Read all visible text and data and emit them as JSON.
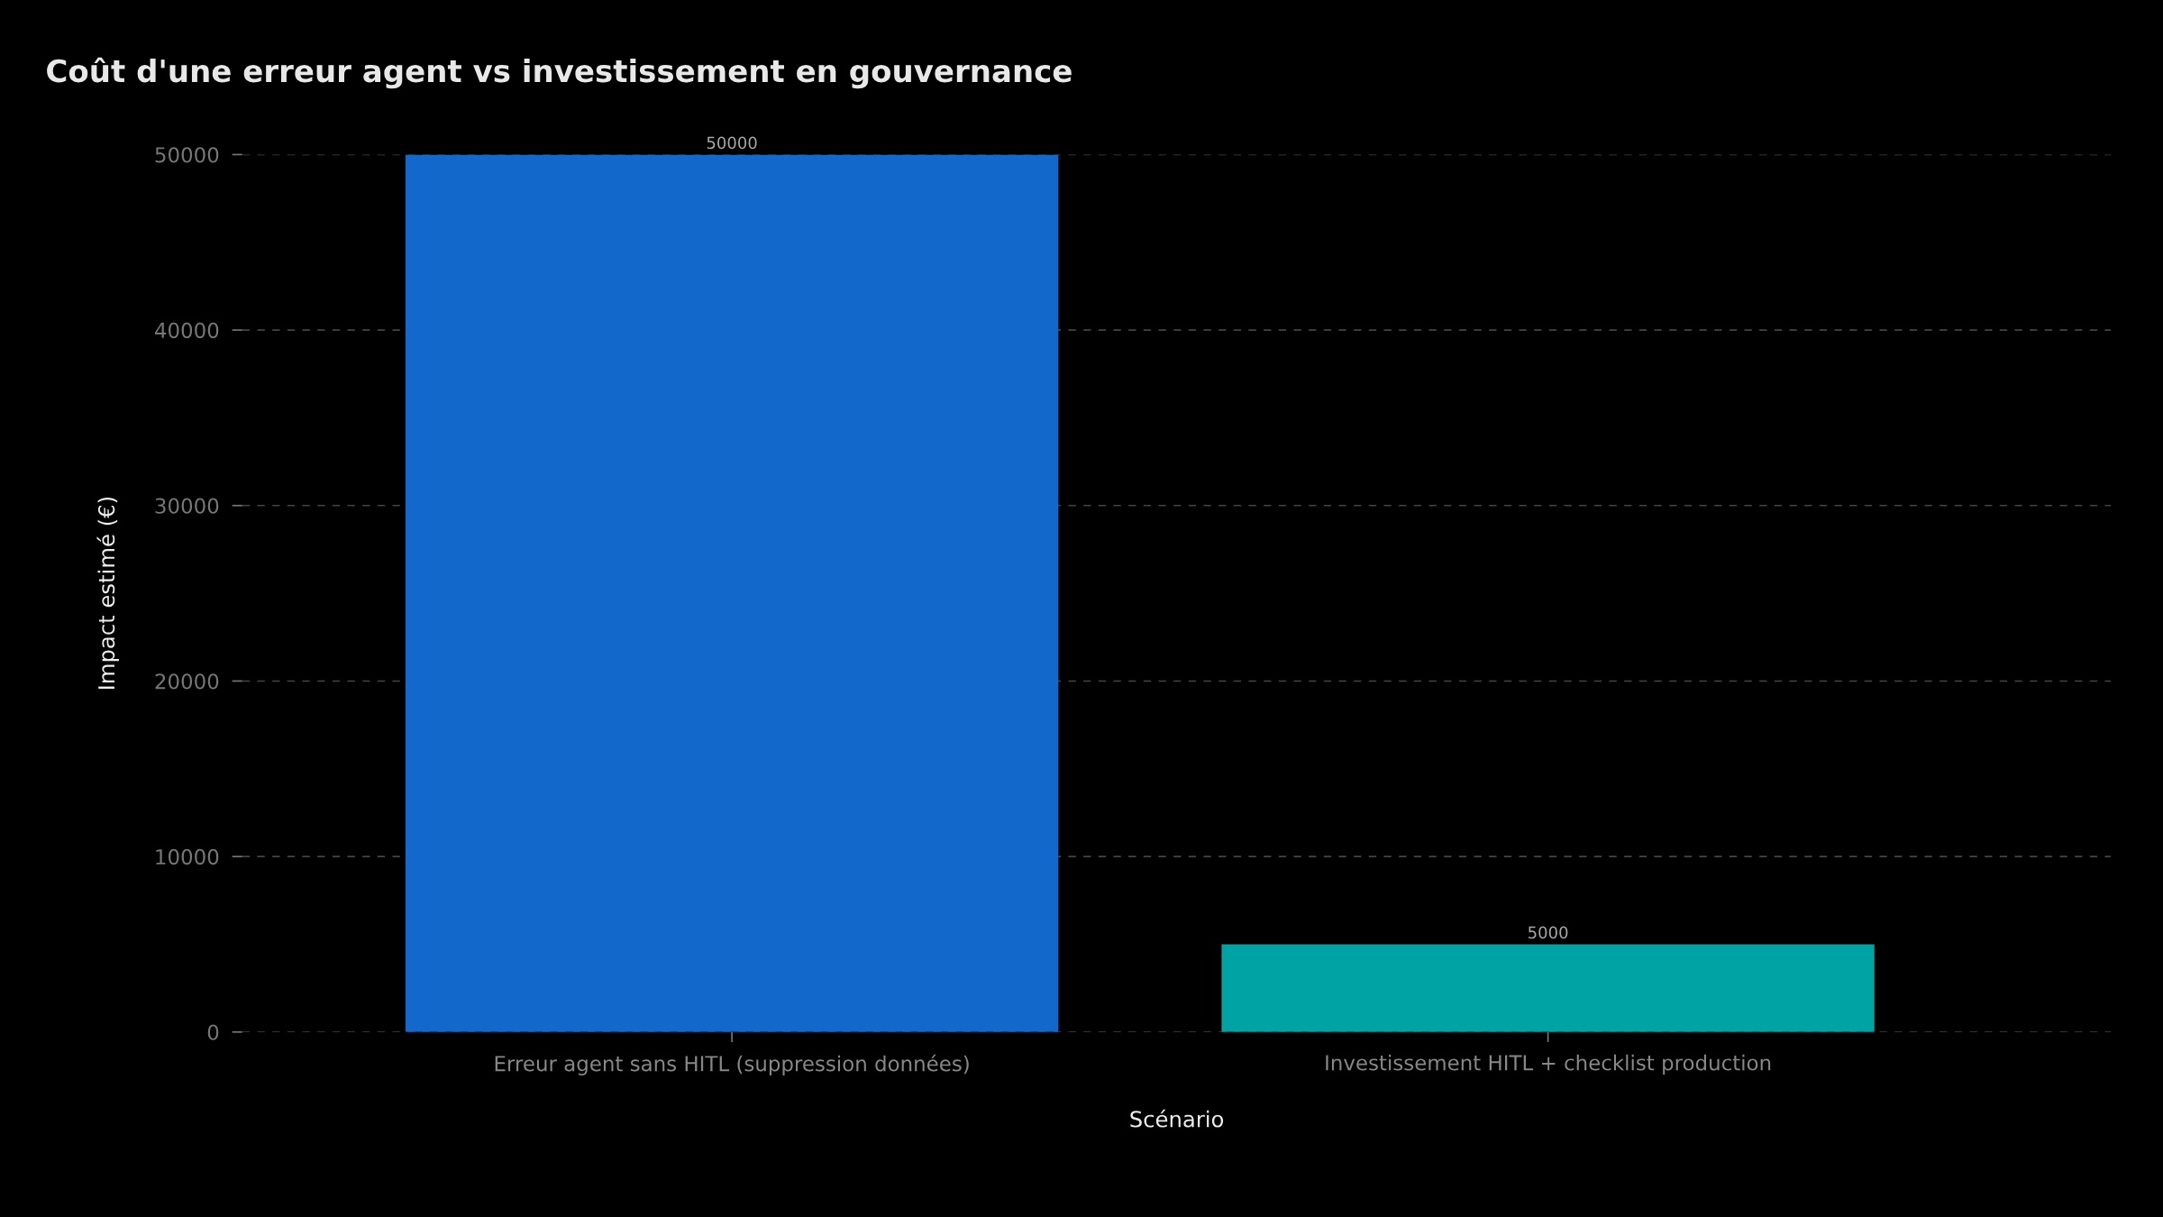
{
  "chart_data": {
    "type": "bar",
    "title": "Coût d'une erreur agent vs investissement en gouvernance",
    "xlabel": "Scénario",
    "ylabel": "Impact estimé (€)",
    "categories": [
      "Erreur agent sans HITL (suppression données)",
      "Investissement HITL + checklist production"
    ],
    "values": [
      50000,
      5000
    ],
    "colors": [
      "#1368cc",
      "#00a3a3"
    ],
    "ylim": [
      0,
      50000
    ],
    "yticks": [
      0,
      10000,
      20000,
      30000,
      40000,
      50000
    ],
    "grid": "y",
    "data_labels": true
  }
}
